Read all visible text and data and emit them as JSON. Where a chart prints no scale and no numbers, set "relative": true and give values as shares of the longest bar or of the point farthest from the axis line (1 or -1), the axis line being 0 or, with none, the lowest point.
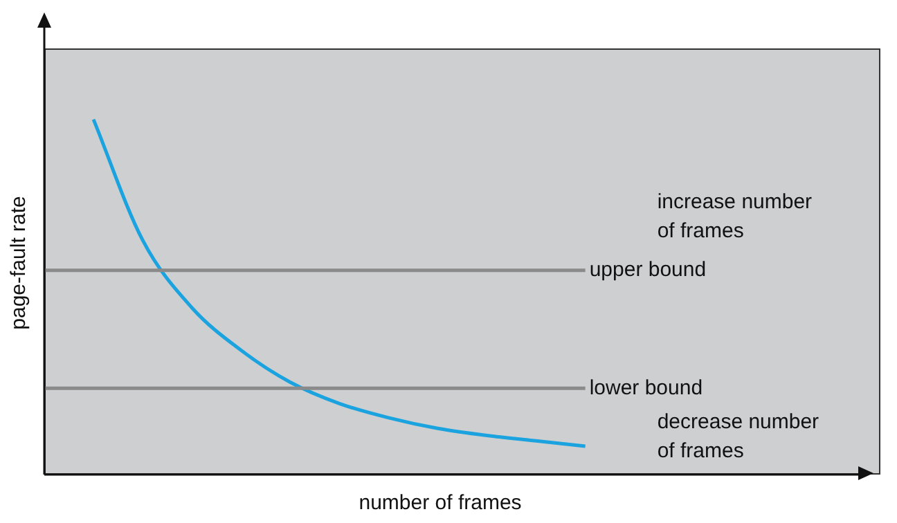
{
  "chart_data": {
    "type": "line",
    "relative": true,
    "xlabel": "number of frames",
    "ylabel": "page-fault rate",
    "categories": [
      null,
      null,
      null,
      null,
      null,
      null,
      null,
      null,
      null,
      null,
      null,
      null,
      null,
      null,
      null,
      null,
      null,
      null
    ],
    "series": [
      {
        "color": "#1ba3e0",
        "values": [
          null,
          1.0,
          0.66,
          0.47,
          0.35,
          0.26,
          0.2,
          0.16,
          0.13,
          0.11,
          0.095,
          0.08,
          null,
          null,
          null,
          null,
          null,
          null
        ]
      }
    ],
    "ref_lines": [
      {
        "axis": "y",
        "value": 0.575,
        "label": "upper bound",
        "color": "#8a8a8a"
      },
      {
        "axis": "y",
        "value": 0.243,
        "label": "lower bound",
        "color": "#8a8a8a"
      }
    ],
    "annotations": [
      "increase number of frames",
      "decrease number of frames"
    ],
    "legend": false,
    "marker": "none",
    "line_style": "solid"
  }
}
